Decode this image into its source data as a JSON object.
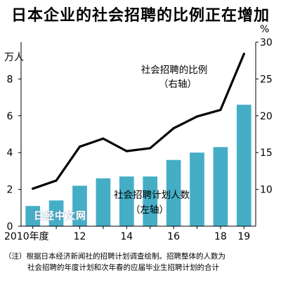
{
  "title": "日本企业的社会招聘的比例正在增加",
  "watermark": "日经中文网",
  "note_line1": "（注）根据日本经济新闻社的招聘计划调查绘制。招聘整体的人数为",
  "note_line2": "社会招聘的年度计划和次年春的应届毕业生招聘计划的合计",
  "chart_data": {
    "type": "bar+line",
    "x": [
      2010,
      2011,
      2012,
      2013,
      2014,
      2015,
      2016,
      2017,
      2018,
      2019
    ],
    "x_tick_labels": {
      "2010": "2010年度",
      "2012": "12",
      "2014": "14",
      "2016": "16",
      "2018": "18",
      "2019": "19"
    },
    "left_axis": {
      "unit": "万人",
      "ylim": [
        0,
        10
      ],
      "ticks": [
        0,
        2,
        4,
        6,
        8
      ]
    },
    "right_axis": {
      "unit": "%",
      "ylim": [
        5,
        30
      ],
      "ticks": [
        10,
        15,
        20,
        25,
        30
      ]
    },
    "series": [
      {
        "name": "社会招聘计划人数",
        "sub_label": "（左轴）",
        "type": "bar",
        "axis": "left",
        "color": "#45aec6",
        "values": [
          1.1,
          1.4,
          2.2,
          2.6,
          2.7,
          2.7,
          3.6,
          4.0,
          4.3,
          6.6
        ]
      },
      {
        "name": "社会招聘的比例",
        "sub_label": "（右轴）",
        "type": "line",
        "axis": "right",
        "color": "#000000",
        "values": [
          10.1,
          11.2,
          15.8,
          16.9,
          15.2,
          15.6,
          18.3,
          19.9,
          20.8,
          28.4
        ]
      }
    ]
  }
}
